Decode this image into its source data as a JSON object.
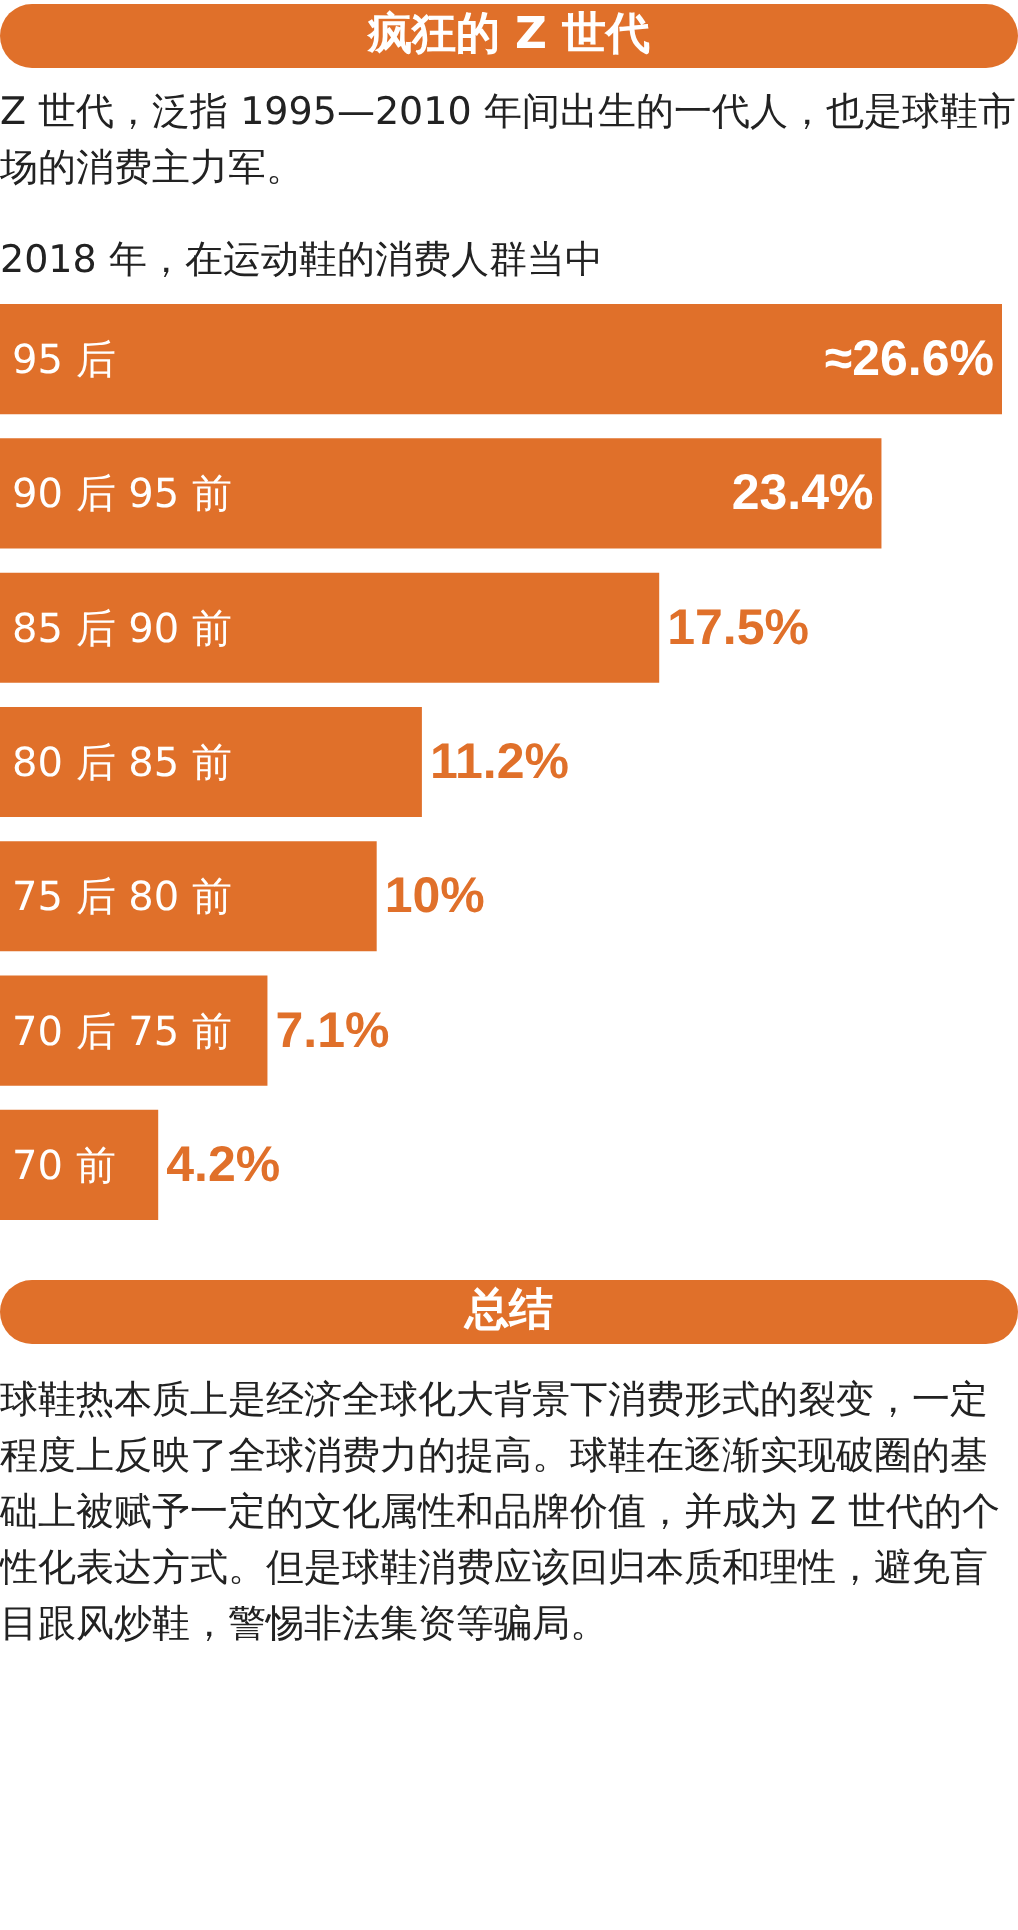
{
  "chart_data": {
    "type": "bar",
    "orientation": "horizontal",
    "title": "疯狂的 Z 世代",
    "subtitle": "2018 年，在运动鞋的消费人群当中",
    "annotations": [
      "Z 世代，泛指 1995—2010 年间出生的一代人，也是球鞋市场的消费主力军。",
      "总结",
      "球鞋热本质上是经济全球化大背景下消费形式的裂变，一定程度上反映了全球消费力的提高。球鞋在逐渐实现破圈的基础上被赋予一定的文化属性和品牌价值，并成为 Z 世代的个性化表达方式。但是球鞋消费应该回归本质和理性，避免盲目跟风炒鞋，警惕非法集资等骗局。"
    ],
    "categories": [
      "95 后",
      "90 后 95 前",
      "85 后 90 前",
      "80 后 85 前",
      "75 后 80 前",
      "70 后 75 前",
      "70 前"
    ],
    "values": [
      26.6,
      23.4,
      17.5,
      11.2,
      10,
      7.1,
      4.2
    ],
    "value_labels": [
      "≈26.6%",
      "23.4%",
      "17.5%",
      "11.2%",
      "10%",
      "7.1%",
      "4.2%"
    ],
    "color": "#e0702a"
  }
}
